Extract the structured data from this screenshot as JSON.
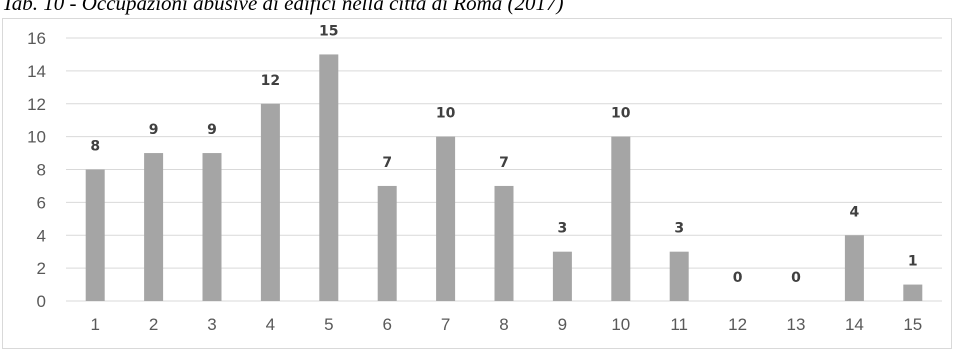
{
  "caption": "Tab. 10 - Occupazioni abusive di edifici nella città di Roma (2017)",
  "colors": {
    "bar": "#a5a5a5",
    "grid": "#d9d9d9",
    "axis_text": "#595959",
    "label_text": "#404040"
  },
  "chart_data": {
    "type": "bar",
    "categories": [
      "1",
      "2",
      "3",
      "4",
      "5",
      "6",
      "7",
      "8",
      "9",
      "10",
      "11",
      "12",
      "13",
      "14",
      "15"
    ],
    "values": [
      8,
      9,
      9,
      12,
      15,
      7,
      10,
      7,
      3,
      10,
      3,
      0,
      0,
      4,
      1
    ],
    "title": "",
    "xlabel": "",
    "ylabel": "",
    "ylim": [
      0,
      16
    ],
    "yticks": [
      0,
      2,
      4,
      6,
      8,
      10,
      12,
      14,
      16
    ],
    "grid": true,
    "legend": "none",
    "data_labels": true
  }
}
